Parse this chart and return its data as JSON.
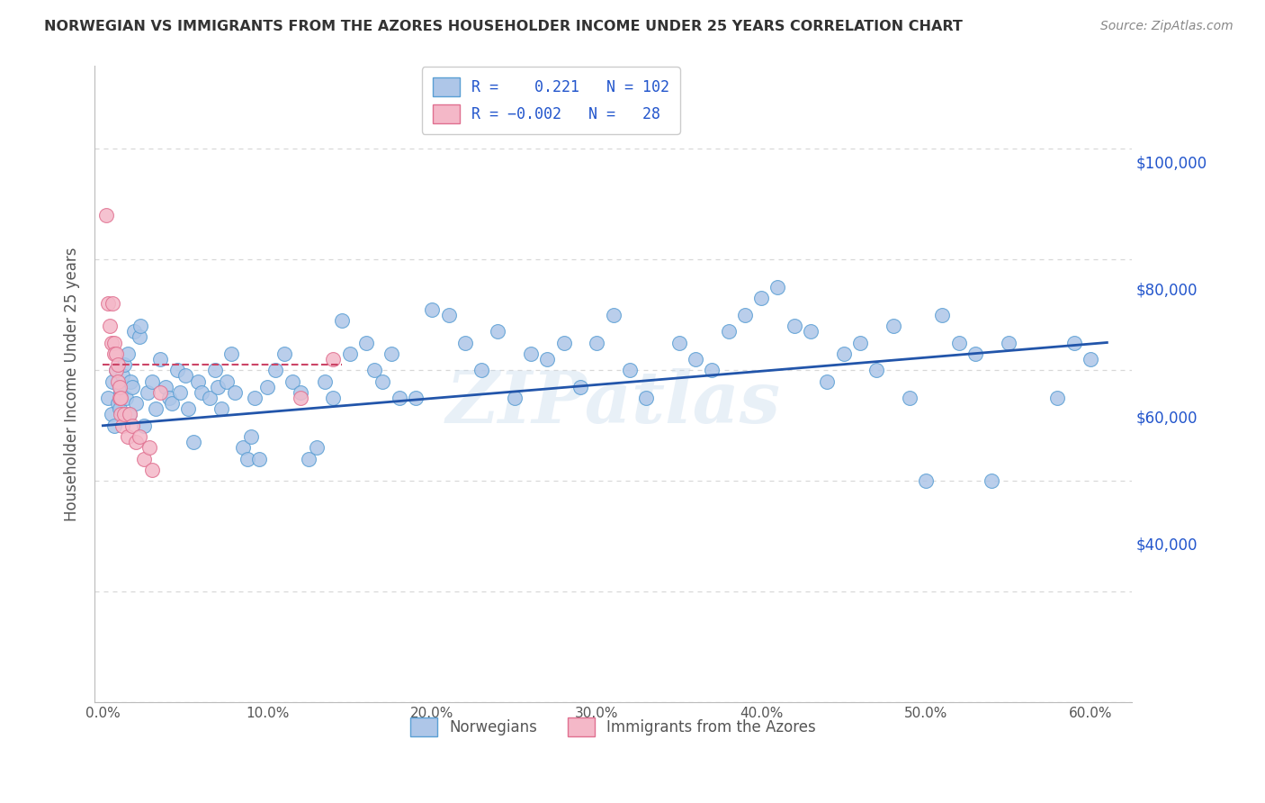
{
  "title": "NORWEGIAN VS IMMIGRANTS FROM THE AZORES HOUSEHOLDER INCOME UNDER 25 YEARS CORRELATION CHART",
  "source": "Source: ZipAtlas.com",
  "ylabel": "Householder Income Under 25 years",
  "xlabel_ticks": [
    "0.0%",
    "10.0%",
    "20.0%",
    "30.0%",
    "40.0%",
    "50.0%",
    "60.0%"
  ],
  "xlabel_vals": [
    0.0,
    0.1,
    0.2,
    0.3,
    0.4,
    0.5,
    0.6
  ],
  "ytick_vals": [
    0,
    20000,
    40000,
    60000,
    80000,
    100000
  ],
  "right_ytick_labels": [
    "$40,000",
    "$60,000",
    "$80,000",
    "$100,000"
  ],
  "right_ytick_vals": [
    40000,
    60000,
    80000,
    100000
  ],
  "xlim": [
    -0.005,
    0.625
  ],
  "ylim": [
    15000,
    115000
  ],
  "norwegian_R": 0.221,
  "norwegian_N": 102,
  "azores_R": -0.002,
  "azores_N": 28,
  "norwegian_color": "#aec6e8",
  "norwegian_edge": "#5a9fd4",
  "azores_color": "#f4b8c8",
  "azores_edge": "#e07090",
  "trend_norwegian_color": "#2255aa",
  "trend_azores_color": "#cc4466",
  "legend_text_color": "#2255cc",
  "title_color": "#333333",
  "norwegian_x": [
    0.003,
    0.005,
    0.006,
    0.007,
    0.008,
    0.009,
    0.01,
    0.01,
    0.011,
    0.012,
    0.013,
    0.014,
    0.015,
    0.016,
    0.017,
    0.018,
    0.019,
    0.02,
    0.022,
    0.023,
    0.025,
    0.027,
    0.03,
    0.032,
    0.035,
    0.038,
    0.04,
    0.042,
    0.045,
    0.047,
    0.05,
    0.052,
    0.055,
    0.058,
    0.06,
    0.065,
    0.068,
    0.07,
    0.072,
    0.075,
    0.078,
    0.08,
    0.085,
    0.088,
    0.09,
    0.092,
    0.095,
    0.1,
    0.105,
    0.11,
    0.115,
    0.12,
    0.125,
    0.13,
    0.135,
    0.14,
    0.145,
    0.15,
    0.16,
    0.165,
    0.17,
    0.175,
    0.18,
    0.19,
    0.2,
    0.21,
    0.22,
    0.23,
    0.24,
    0.25,
    0.26,
    0.27,
    0.28,
    0.29,
    0.3,
    0.31,
    0.32,
    0.33,
    0.35,
    0.36,
    0.37,
    0.38,
    0.39,
    0.4,
    0.41,
    0.42,
    0.43,
    0.44,
    0.45,
    0.46,
    0.47,
    0.48,
    0.49,
    0.5,
    0.51,
    0.52,
    0.53,
    0.54,
    0.55,
    0.58,
    0.59,
    0.6
  ],
  "norwegian_y": [
    55000,
    52000,
    58000,
    50000,
    60000,
    54000,
    57000,
    53000,
    56000,
    59000,
    61000,
    55000,
    63000,
    52000,
    58000,
    57000,
    67000,
    54000,
    66000,
    68000,
    50000,
    56000,
    58000,
    53000,
    62000,
    57000,
    55000,
    54000,
    60000,
    56000,
    59000,
    53000,
    47000,
    58000,
    56000,
    55000,
    60000,
    57000,
    53000,
    58000,
    63000,
    56000,
    46000,
    44000,
    48000,
    55000,
    44000,
    57000,
    60000,
    63000,
    58000,
    56000,
    44000,
    46000,
    58000,
    55000,
    69000,
    63000,
    65000,
    60000,
    58000,
    63000,
    55000,
    55000,
    71000,
    70000,
    65000,
    60000,
    67000,
    55000,
    63000,
    62000,
    65000,
    57000,
    65000,
    70000,
    60000,
    55000,
    65000,
    62000,
    60000,
    67000,
    70000,
    73000,
    75000,
    68000,
    67000,
    58000,
    63000,
    65000,
    60000,
    68000,
    55000,
    40000,
    70000,
    65000,
    63000,
    40000,
    65000,
    55000,
    65000,
    62000
  ],
  "azores_x": [
    0.002,
    0.003,
    0.004,
    0.005,
    0.006,
    0.007,
    0.007,
    0.008,
    0.008,
    0.009,
    0.009,
    0.01,
    0.01,
    0.011,
    0.011,
    0.012,
    0.013,
    0.015,
    0.016,
    0.018,
    0.02,
    0.022,
    0.025,
    0.028,
    0.03,
    0.035,
    0.12,
    0.14
  ],
  "azores_y": [
    88000,
    72000,
    68000,
    65000,
    72000,
    65000,
    63000,
    63000,
    60000,
    61000,
    58000,
    55000,
    57000,
    55000,
    52000,
    50000,
    52000,
    48000,
    52000,
    50000,
    47000,
    48000,
    44000,
    46000,
    42000,
    56000,
    55000,
    62000
  ],
  "nor_trend_x0": 0.0,
  "nor_trend_x1": 0.61,
  "nor_trend_y0": 50000,
  "nor_trend_y1": 65000,
  "az_trend_x0": 0.0,
  "az_trend_x1": 0.145,
  "az_trend_y0": 61000,
  "az_trend_y1": 61000,
  "watermark": "ZIPatlas",
  "grid_color": "#d8d8d8",
  "background_color": "#ffffff"
}
